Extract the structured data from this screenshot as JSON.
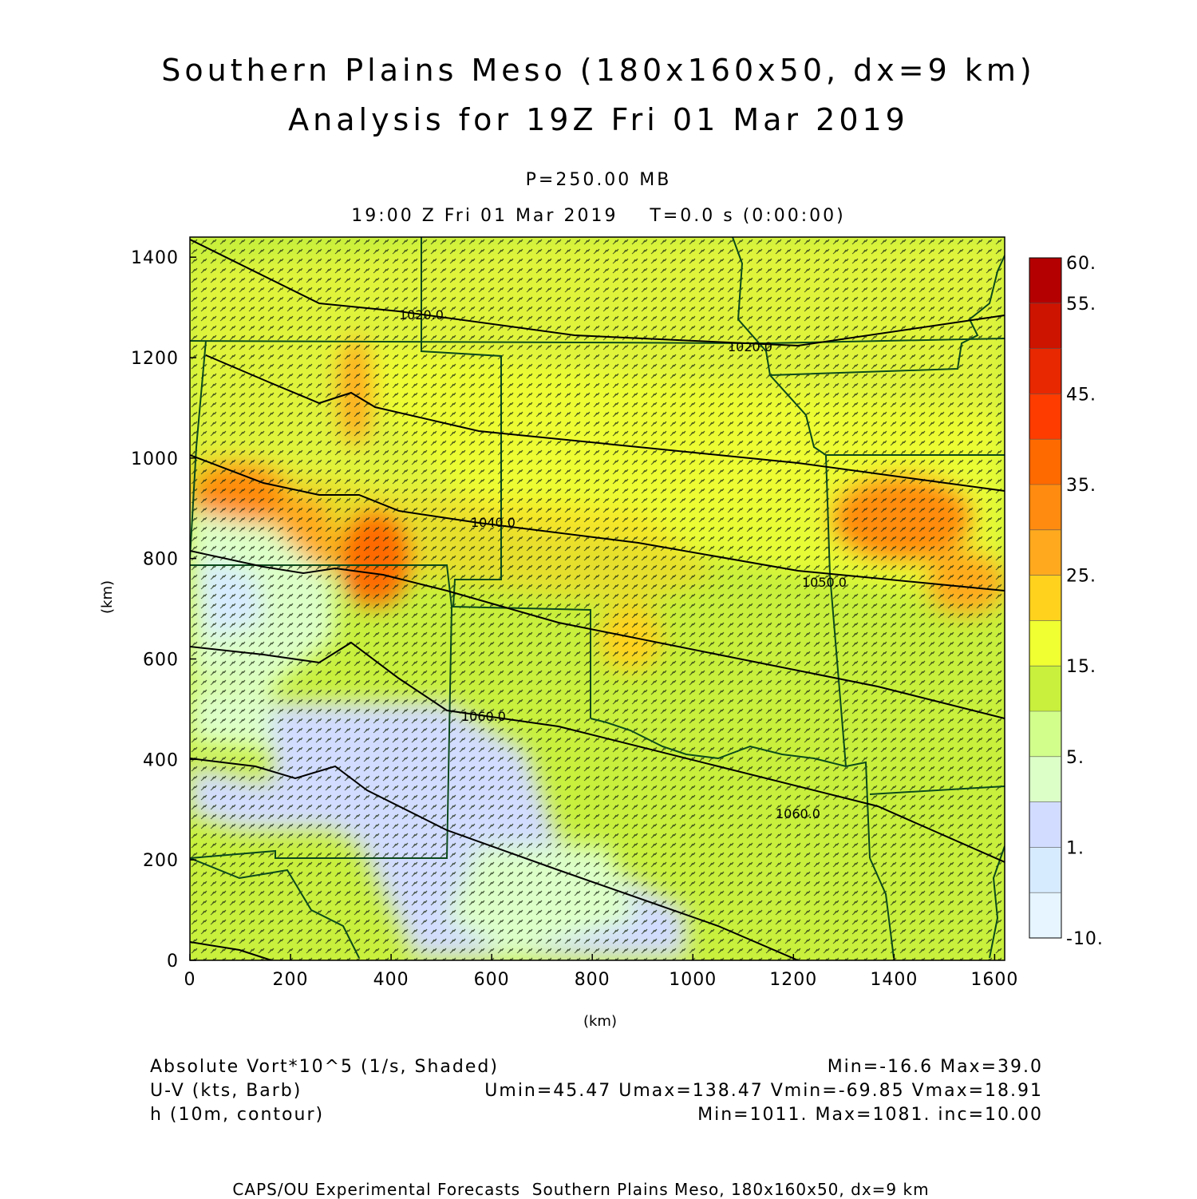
{
  "title": {
    "line1": "Southern Plains Meso (180x160x50, dx=9 km)",
    "line2": "Analysis for 19Z Fri 01 Mar 2019"
  },
  "subtitle": {
    "pressure": "P=250.00 MB",
    "time": "19:00 Z Fri 01 Mar 2019    T=0.0 s (0:00:00)"
  },
  "axes": {
    "x_label": "(km)",
    "y_label": "(km)",
    "x_ticks": [
      "0",
      "200",
      "400",
      "600",
      "800",
      "1000",
      "1200",
      "1400",
      "1600"
    ],
    "y_ticks": [
      "0",
      "200",
      "400",
      "600",
      "800",
      "1000",
      "1200",
      "1400"
    ],
    "x_range_km": [
      0,
      1620
    ],
    "y_range_km": [
      0,
      1440
    ]
  },
  "colorbar": {
    "labels": [
      "60.",
      "55.",
      "45.",
      "35.",
      "25.",
      "15.",
      "5.",
      "1.",
      "-10."
    ],
    "colors": [
      "#b40000",
      "#cd1400",
      "#e82800",
      "#ff3c00",
      "#ff6a00",
      "#ff8c10",
      "#ffaa1e",
      "#ffd21e",
      "#f0ff32",
      "#c8f03c",
      "#d2ff8c",
      "#dcffc8",
      "#d2dcff",
      "#d7ebff",
      "#e6f5ff"
    ]
  },
  "contour_labels": [
    "1020.0",
    "1020.0",
    "1040.0",
    "1050.0",
    "1060.0",
    "1060.0"
  ],
  "legend": {
    "field1_name": "Absolute Vort*10^5 (1/s, Shaded)",
    "field1_stats": "Min=-16.6 Max=39.0",
    "field2_name": "U-V (kts, Barb)",
    "field2_stats": "Umin=45.47 Umax=138.47 Vmin=-69.85 Vmax=18.91",
    "field3_name": "h (10m, contour)",
    "field3_stats": "Min=1011. Max=1081. inc=10.00"
  },
  "footer": "CAPS/OU Experimental Forecasts  Southern Plains Meso, 180x160x50, dx=9 km"
}
